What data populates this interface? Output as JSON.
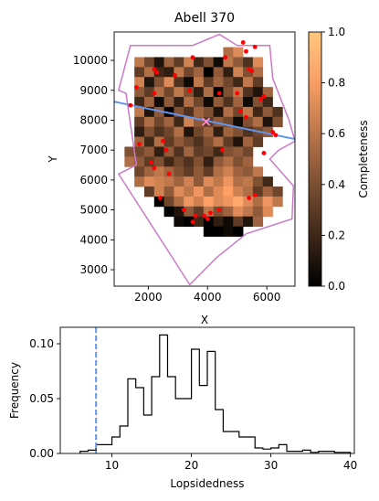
{
  "chart_data": [
    {
      "type": "heatmap",
      "title": "Abell 370",
      "xlabel": "X",
      "ylabel": "Y",
      "xlim": [
        850,
        6950
      ],
      "ylim": [
        2450,
        10950
      ],
      "x_ticks": [
        2000,
        4000,
        6000
      ],
      "y_ticks": [
        3000,
        4000,
        5000,
        6000,
        7000,
        8000,
        9000,
        10000
      ],
      "colorbar": {
        "label": "Completeness",
        "range": [
          0.0,
          1.0
        ],
        "ticks": [
          0.0,
          0.2,
          0.4,
          0.6,
          0.8,
          1.0
        ],
        "colormap": "copper"
      },
      "grid": {
        "x0": 1200,
        "y0": 3450,
        "cell": 333,
        "cols": 16,
        "rows": 21,
        "comment_rows": "row 0 = top (y≈10450..10783), values are completeness 0-1, null = no data",
        "values": [
          [
            null,
            null,
            null,
            null,
            null,
            null,
            null,
            null,
            null,
            null,
            0.55,
            0.7,
            null,
            null,
            null,
            null
          ],
          [
            null,
            0.6,
            0.35,
            0.1,
            0.5,
            0.3,
            0.65,
            0.2,
            0.4,
            0.05,
            0.6,
            0.45,
            0.25,
            0.7,
            null,
            null
          ],
          [
            null,
            0.3,
            0.55,
            0.2,
            0.15,
            0.6,
            0.35,
            0.5,
            0.0,
            0.45,
            0.15,
            0.65,
            0.4,
            0.55,
            null,
            null
          ],
          [
            null,
            0.65,
            0.1,
            0.4,
            0.7,
            0.25,
            0.05,
            0.6,
            0.3,
            0.5,
            0.35,
            0.2,
            0.6,
            0.3,
            null,
            null
          ],
          [
            null,
            0.45,
            0.3,
            0.55,
            0.35,
            0.6,
            0.4,
            0.15,
            0.55,
            0.0,
            0.4,
            0.6,
            0.25,
            0.1,
            0.5,
            null
          ],
          [
            null,
            0.2,
            0.5,
            0.05,
            0.45,
            0.15,
            0.55,
            0.35,
            0.05,
            0.45,
            0.25,
            0.5,
            0.05,
            0.4,
            0.2,
            null
          ],
          [
            null,
            0.6,
            0.1,
            0.45,
            0.0,
            0.4,
            0.25,
            0.5,
            0.4,
            0.1,
            0.55,
            0.35,
            0.6,
            0.2,
            0.45,
            0.25
          ],
          [
            null,
            0.3,
            0.55,
            0.35,
            0.5,
            0.2,
            0.65,
            0.45,
            0.3,
            0.45,
            0.35,
            0.05,
            0.4,
            0.55,
            0.1,
            0.4
          ],
          [
            null,
            0.15,
            0.4,
            0.25,
            0.35,
            0.55,
            0.1,
            0.35,
            0.5,
            0.15,
            0.5,
            0.4,
            0.25,
            0.35,
            0.45,
            null
          ],
          [
            null,
            0.5,
            0.2,
            0.55,
            0.3,
            0.45,
            0.35,
            0.25,
            0.4,
            0.55,
            0.3,
            0.1,
            0.5,
            0.3,
            null,
            null
          ],
          [
            0.4,
            0.35,
            0.45,
            0.15,
            0.45,
            0.25,
            0.5,
            0.3,
            0.35,
            0.2,
            0.4,
            0.45,
            0.35,
            null,
            null,
            null
          ],
          [
            0.55,
            0.45,
            0.3,
            0.4,
            0.2,
            0.35,
            0.25,
            0.4,
            0.15,
            0.45,
            0.55,
            0.4,
            0.5,
            null,
            null,
            null
          ],
          [
            null,
            0.35,
            0.5,
            0.6,
            0.5,
            0.4,
            0.3,
            0.45,
            0.3,
            0.55,
            0.65,
            0.5,
            0.45,
            0.6,
            null,
            null
          ],
          [
            null,
            0.55,
            0.7,
            0.65,
            0.6,
            0.5,
            0.65,
            0.45,
            0.7,
            0.6,
            0.75,
            0.55,
            0.6,
            0.4,
            0.2,
            null
          ],
          [
            null,
            null,
            0.3,
            0.65,
            0.45,
            0.7,
            0.6,
            0.75,
            0.55,
            0.7,
            0.8,
            0.65,
            0.55,
            0.3,
            0.5,
            0.35
          ],
          [
            null,
            null,
            null,
            0.0,
            0.35,
            0.55,
            0.75,
            0.65,
            0.8,
            0.7,
            0.75,
            0.85,
            0.7,
            0.55,
            0.75,
            0.6
          ],
          [
            null,
            null,
            null,
            null,
            0.0,
            0.1,
            0.45,
            0.3,
            0.6,
            0.4,
            0.5,
            0.7,
            0.6,
            0.45,
            0.7,
            null
          ],
          [
            null,
            null,
            null,
            null,
            null,
            0.05,
            0.0,
            0.2,
            0.0,
            0.15,
            0.05,
            0.3,
            0.1,
            0.5,
            null,
            null
          ],
          [
            null,
            null,
            null,
            null,
            null,
            null,
            null,
            null,
            0.0,
            0.0,
            0.05,
            0.0,
            null,
            null,
            null,
            null
          ],
          [
            null,
            null,
            null,
            null,
            null,
            null,
            null,
            null,
            null,
            null,
            null,
            null,
            null,
            null,
            null,
            null
          ],
          [
            null,
            null,
            null,
            null,
            null,
            null,
            null,
            null,
            null,
            null,
            null,
            null,
            null,
            null,
            null,
            null
          ]
        ]
      },
      "footprint_polygon": [
        [
          1400,
          10500
        ],
        [
          3500,
          10500
        ],
        [
          4400,
          10870
        ],
        [
          5000,
          10500
        ],
        [
          6100,
          10500
        ],
        [
          6200,
          9400
        ],
        [
          6750,
          8000
        ],
        [
          6950,
          7300
        ],
        [
          6400,
          7000
        ],
        [
          6100,
          6700
        ],
        [
          6900,
          5800
        ],
        [
          6850,
          4700
        ],
        [
          5300,
          4200
        ],
        [
          4300,
          3400
        ],
        [
          3400,
          2500
        ],
        [
          1000,
          6200
        ],
        [
          1600,
          6500
        ],
        [
          1250,
          8900
        ],
        [
          1000,
          9000
        ]
      ],
      "points": [
        [
          2200,
          9700
        ],
        [
          2300,
          9600
        ],
        [
          3500,
          10100
        ],
        [
          2900,
          9500
        ],
        [
          4600,
          10100
        ],
        [
          5200,
          10600
        ],
        [
          5300,
          10300
        ],
        [
          5600,
          10450
        ],
        [
          5400,
          9700
        ],
        [
          5500,
          9650
        ],
        [
          1600,
          9100
        ],
        [
          2200,
          8900
        ],
        [
          3400,
          9000
        ],
        [
          4400,
          8900
        ],
        [
          5000,
          8900
        ],
        [
          1400,
          8500
        ],
        [
          5800,
          8700
        ],
        [
          5900,
          8800
        ],
        [
          5100,
          8300
        ],
        [
          5300,
          8100
        ],
        [
          6200,
          7600
        ],
        [
          6300,
          7500
        ],
        [
          1700,
          7200
        ],
        [
          2500,
          7300
        ],
        [
          2600,
          7000
        ],
        [
          2100,
          6600
        ],
        [
          2200,
          6400
        ],
        [
          4500,
          7000
        ],
        [
          5900,
          6900
        ],
        [
          2700,
          6200
        ],
        [
          5600,
          5500
        ],
        [
          5400,
          5400
        ],
        [
          2400,
          5400
        ],
        [
          4000,
          4700
        ],
        [
          3600,
          4800
        ],
        [
          3500,
          4600
        ],
        [
          4100,
          4900
        ],
        [
          4400,
          5000
        ],
        [
          3900,
          4800
        ],
        [
          3200,
          5000
        ]
      ],
      "center_marker": [
        3950,
        7950
      ],
      "axis_line": [
        [
          850,
          8620
        ],
        [
          6950,
          7370
        ]
      ]
    },
    {
      "type": "histogram",
      "xlabel": "Lopsidedness",
      "ylabel": "Frequency",
      "xlim": [
        3.5,
        40.5
      ],
      "ylim": [
        0.0,
        0.115
      ],
      "x_ticks": [
        10,
        20,
        30,
        40
      ],
      "y_ticks": [
        0.0,
        0.05,
        0.1
      ],
      "y_tick_labels": [
        "0.00",
        "0.05",
        "0.10"
      ],
      "bin_edges": [
        6,
        7,
        8,
        9,
        10,
        11,
        12,
        13,
        14,
        15,
        16,
        17,
        18,
        19,
        20,
        21,
        22,
        23,
        24,
        25,
        26,
        27,
        28,
        29,
        30,
        31,
        32,
        33,
        34,
        35,
        36,
        37,
        38,
        39,
        40
      ],
      "values": [
        0.002,
        0.003,
        0.008,
        0.008,
        0.015,
        0.025,
        0.068,
        0.06,
        0.035,
        0.07,
        0.108,
        0.07,
        0.05,
        0.05,
        0.095,
        0.062,
        0.093,
        0.04,
        0.02,
        0.02,
        0.015,
        0.015,
        0.005,
        0.004,
        0.005,
        0.008,
        0.002,
        0.002,
        0.003,
        0.001,
        0.002,
        0.002,
        0.001,
        0.001
      ],
      "vline": 8.0,
      "vline_color": "#6495ed"
    }
  ]
}
